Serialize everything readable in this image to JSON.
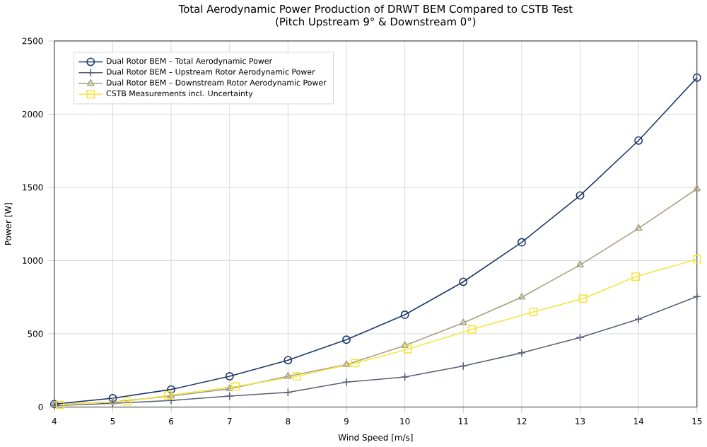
{
  "chart_data": {
    "type": "line",
    "title": "Total Aerodynamic Power Production of DRWT BEM Compared to CSTB Test\n(Pitch Upstream 9° & Downstream 0°)",
    "xlabel": "Wind Speed [m/s]",
    "ylabel": "Power [W]",
    "xlim": [
      4,
      15
    ],
    "xticks": [
      4,
      5,
      6,
      7,
      8,
      9,
      10,
      11,
      12,
      13,
      14,
      15
    ],
    "ylim": [
      0,
      2500
    ],
    "yticks": [
      0,
      500,
      1000,
      1500,
      2000,
      2500
    ],
    "grid": true,
    "legend": "top left",
    "x": [
      4,
      5,
      6,
      7,
      8,
      9,
      10,
      11,
      12,
      13,
      14,
      15
    ],
    "series": [
      {
        "name": "Dual Rotor BEM – Total Aerodynamic Power",
        "color": "#1f3868",
        "marker": "circle",
        "values": [
          20,
          60,
          120,
          210,
          320,
          460,
          630,
          855,
          1125,
          1445,
          1820,
          2250
        ]
      },
      {
        "name": "Dual Rotor BEM – Upstream Rotor Aerodynamic Power",
        "color": "#5a6078",
        "marker": "cross",
        "values": [
          10,
          25,
          45,
          75,
          100,
          170,
          205,
          280,
          370,
          475,
          600,
          755
        ]
      },
      {
        "name": "Dual Rotor BEM – Downstream Rotor Aerodynamic Power",
        "color": "#a89f7f",
        "marker": "triangle",
        "values": [
          15,
          35,
          75,
          125,
          210,
          290,
          420,
          575,
          750,
          970,
          1220,
          1490
        ]
      },
      {
        "name": "CSTB Measurements incl. Uncertainty",
        "color": "#f5e642",
        "marker": "square",
        "x": [
          4.1,
          5.25,
          5.95,
          7.1,
          8.15,
          9.15,
          10.05,
          11.15,
          12.2,
          13.05,
          13.95,
          15.0
        ],
        "values": [
          15,
          40,
          80,
          140,
          210,
          300,
          395,
          530,
          650,
          740,
          890,
          1010
        ]
      }
    ]
  }
}
